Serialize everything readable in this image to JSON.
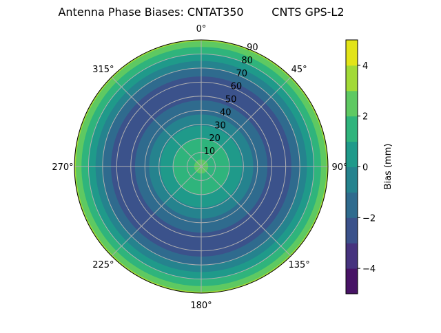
{
  "chart_data": {
    "type": "polar-contour",
    "title": "Antenna Phase Biases: CNTAT350        CNTS GPS-L2",
    "theta_direction": "clockwise",
    "theta_zero": "top",
    "theta_tick_labels": [
      "0°",
      "45°",
      "90°",
      "135°",
      "180°",
      "225°",
      "270°",
      "315°"
    ],
    "theta_ticks": [
      0,
      45,
      90,
      135,
      180,
      225,
      270,
      315
    ],
    "r_range": [
      0,
      90
    ],
    "r_ticks": [
      10,
      20,
      30,
      40,
      50,
      60,
      70,
      80,
      90
    ],
    "r_tick_labels": [
      "10",
      "20",
      "30",
      "40",
      "50",
      "60",
      "70",
      "80",
      "90"
    ],
    "grid": true,
    "levels": [
      -5,
      -4,
      -3,
      -2,
      -1,
      0,
      1,
      2,
      3,
      4,
      5
    ],
    "band_colors": [
      "#471365",
      "#46337e",
      "#3b528b",
      "#2f6b8e",
      "#25838e",
      "#1f9a8a",
      "#2fb47c",
      "#5ec962",
      "#a2da37",
      "#e2e418"
    ],
    "radial_profile": [
      {
        "r_from": 0,
        "r_to": 5,
        "band": [
          2,
          3
        ]
      },
      {
        "r_from": 5,
        "r_to": 20,
        "band": [
          1,
          2
        ]
      },
      {
        "r_from": 20,
        "r_to": 29,
        "band": [
          0,
          1
        ]
      },
      {
        "r_from": 29,
        "r_to": 37,
        "band": [
          -1,
          0
        ]
      },
      {
        "r_from": 37,
        "r_to": 47,
        "band": [
          -2,
          -1
        ]
      },
      {
        "r_from": 47,
        "r_to": 64,
        "band": [
          -3,
          -2
        ]
      },
      {
        "r_from": 64,
        "r_to": 70,
        "band": [
          -2,
          -1
        ]
      },
      {
        "r_from": 70,
        "r_to": 75,
        "band": [
          -1,
          0
        ]
      },
      {
        "r_from": 75,
        "r_to": 80,
        "band": [
          0,
          1
        ]
      },
      {
        "r_from": 80,
        "r_to": 85,
        "band": [
          1,
          2
        ]
      },
      {
        "r_from": 85,
        "r_to": 89,
        "band": [
          2,
          3
        ]
      },
      {
        "r_from": 89,
        "r_to": 90,
        "band": [
          3,
          4
        ]
      }
    ],
    "colorbar": {
      "label": "Bias (mm)",
      "range": [
        -5,
        5
      ],
      "ticks": [
        -4,
        -2,
        0,
        2,
        4
      ],
      "tick_labels": [
        "−4",
        "−2",
        "0",
        "2",
        "4"
      ],
      "placement": "right"
    }
  }
}
